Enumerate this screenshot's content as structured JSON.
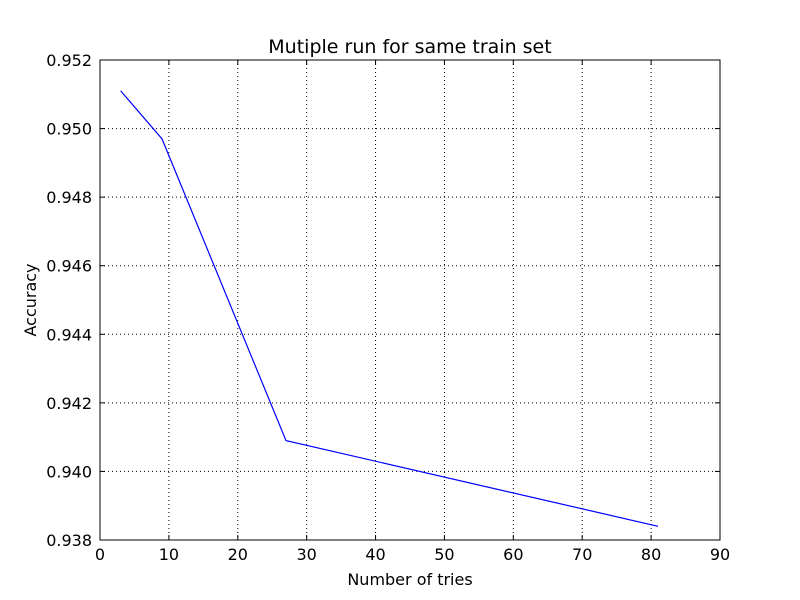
{
  "chart_data": {
    "type": "line",
    "title": "Mutiple run for same train set",
    "xlabel": "Number of tries",
    "ylabel": "Accuracy",
    "xlim": [
      0,
      90
    ],
    "ylim": [
      0.938,
      0.952
    ],
    "x_ticks": [
      0,
      10,
      20,
      30,
      40,
      50,
      60,
      70,
      80,
      90
    ],
    "y_ticks": [
      0.938,
      0.94,
      0.942,
      0.944,
      0.946,
      0.948,
      0.95,
      0.952
    ],
    "x_tick_labels": [
      "0",
      "10",
      "20",
      "30",
      "40",
      "50",
      "60",
      "70",
      "80",
      "90"
    ],
    "y_tick_labels": [
      "0.938",
      "0.940",
      "0.942",
      "0.944",
      "0.946",
      "0.948",
      "0.950",
      "0.952"
    ],
    "grid": true,
    "legend": "none",
    "series": [
      {
        "color": "#0000ff",
        "x": [
          3,
          9,
          27,
          81
        ],
        "y": [
          0.9511,
          0.9497,
          0.9409,
          0.9384
        ]
      }
    ]
  }
}
